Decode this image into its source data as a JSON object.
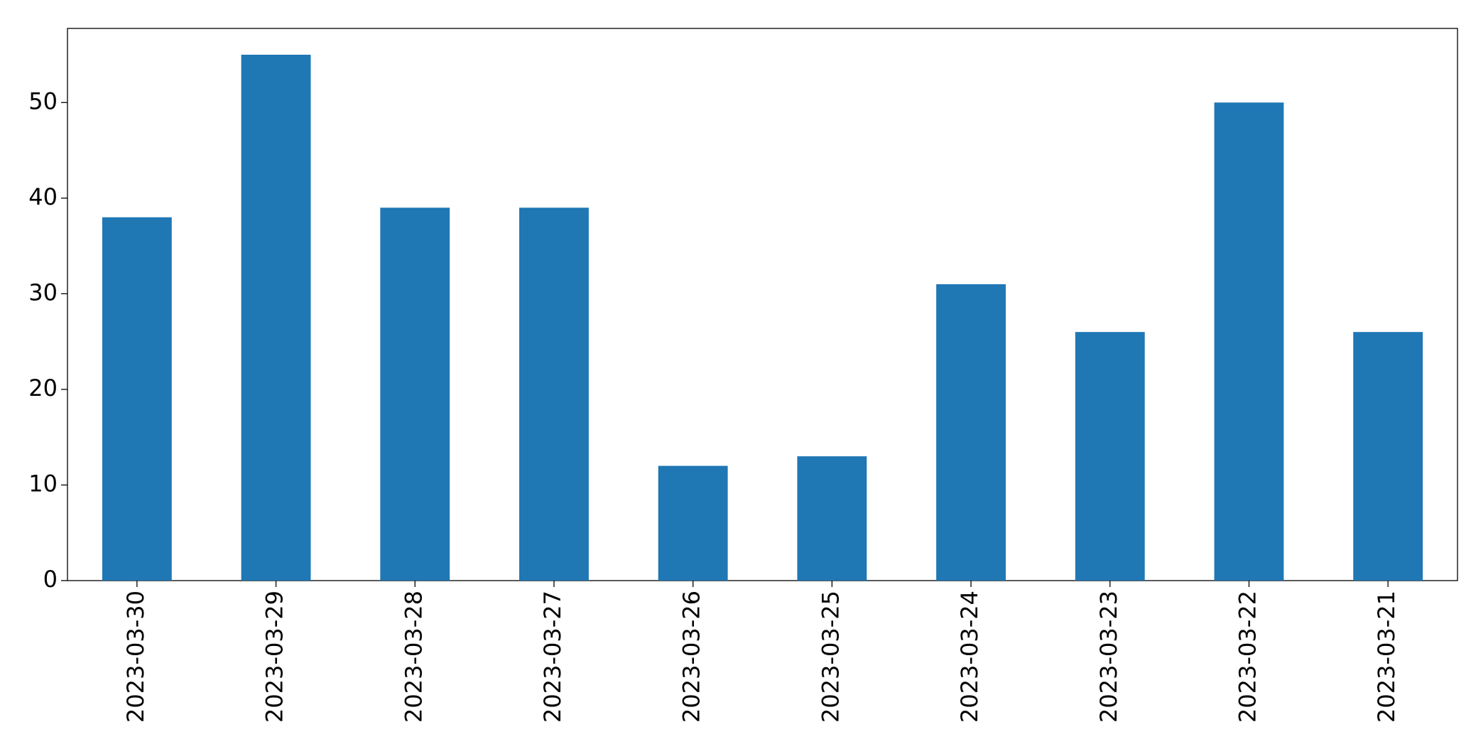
{
  "chart_data": {
    "type": "bar",
    "categories": [
      "2023-03-30",
      "2023-03-29",
      "2023-03-28",
      "2023-03-27",
      "2023-03-26",
      "2023-03-25",
      "2023-03-24",
      "2023-03-23",
      "2023-03-22",
      "2023-03-21"
    ],
    "values": [
      38,
      55,
      39,
      39,
      12,
      13,
      31,
      26,
      50,
      26
    ],
    "color": "#1f77b4",
    "ylim": [
      0,
      57.75
    ],
    "yticks": [
      0,
      10,
      20,
      30,
      40,
      50
    ],
    "grid": false
  }
}
